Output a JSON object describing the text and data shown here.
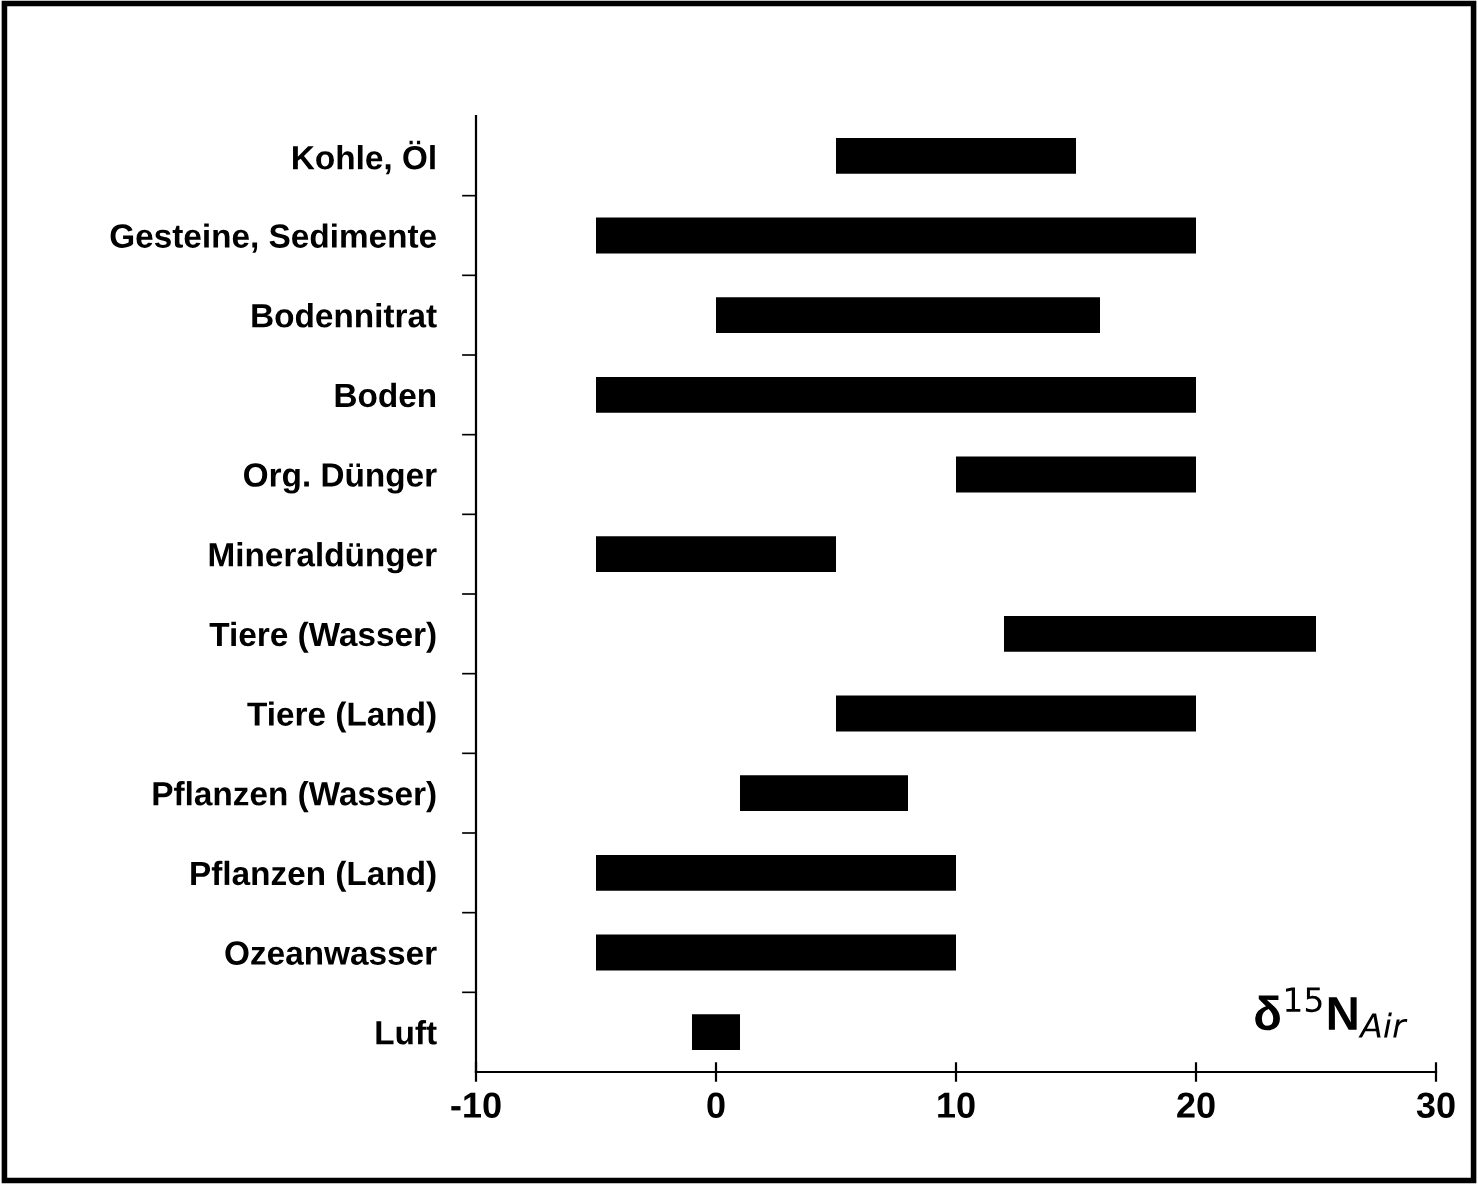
{
  "chart_data": {
    "type": "bar",
    "orientation": "horizontal",
    "categories": [
      "Kohle, Öl",
      "Gesteine, Sedimente",
      "Bodennitrat",
      "Boden",
      "Org. Dünger",
      "Mineraldünger",
      "Tiere (Wasser)",
      "Tiere (Land)",
      "Pflanzen (Wasser)",
      "Pflanzen (Land)",
      "Ozeanwasser",
      "Luft"
    ],
    "base": [
      5,
      -5,
      0,
      -5,
      10,
      -5,
      12,
      5,
      1,
      -5,
      -5,
      -1
    ],
    "values": [
      10,
      25,
      16,
      25,
      10,
      10,
      13,
      15,
      7,
      15,
      15,
      2
    ],
    "color": "#000000",
    "xlim": [
      -10,
      30
    ],
    "xticks": [
      -10,
      0,
      10,
      20,
      30
    ],
    "annotations": [
      "δ$^{15}$N$_{Air}$"
    ],
    "grid": false
  }
}
